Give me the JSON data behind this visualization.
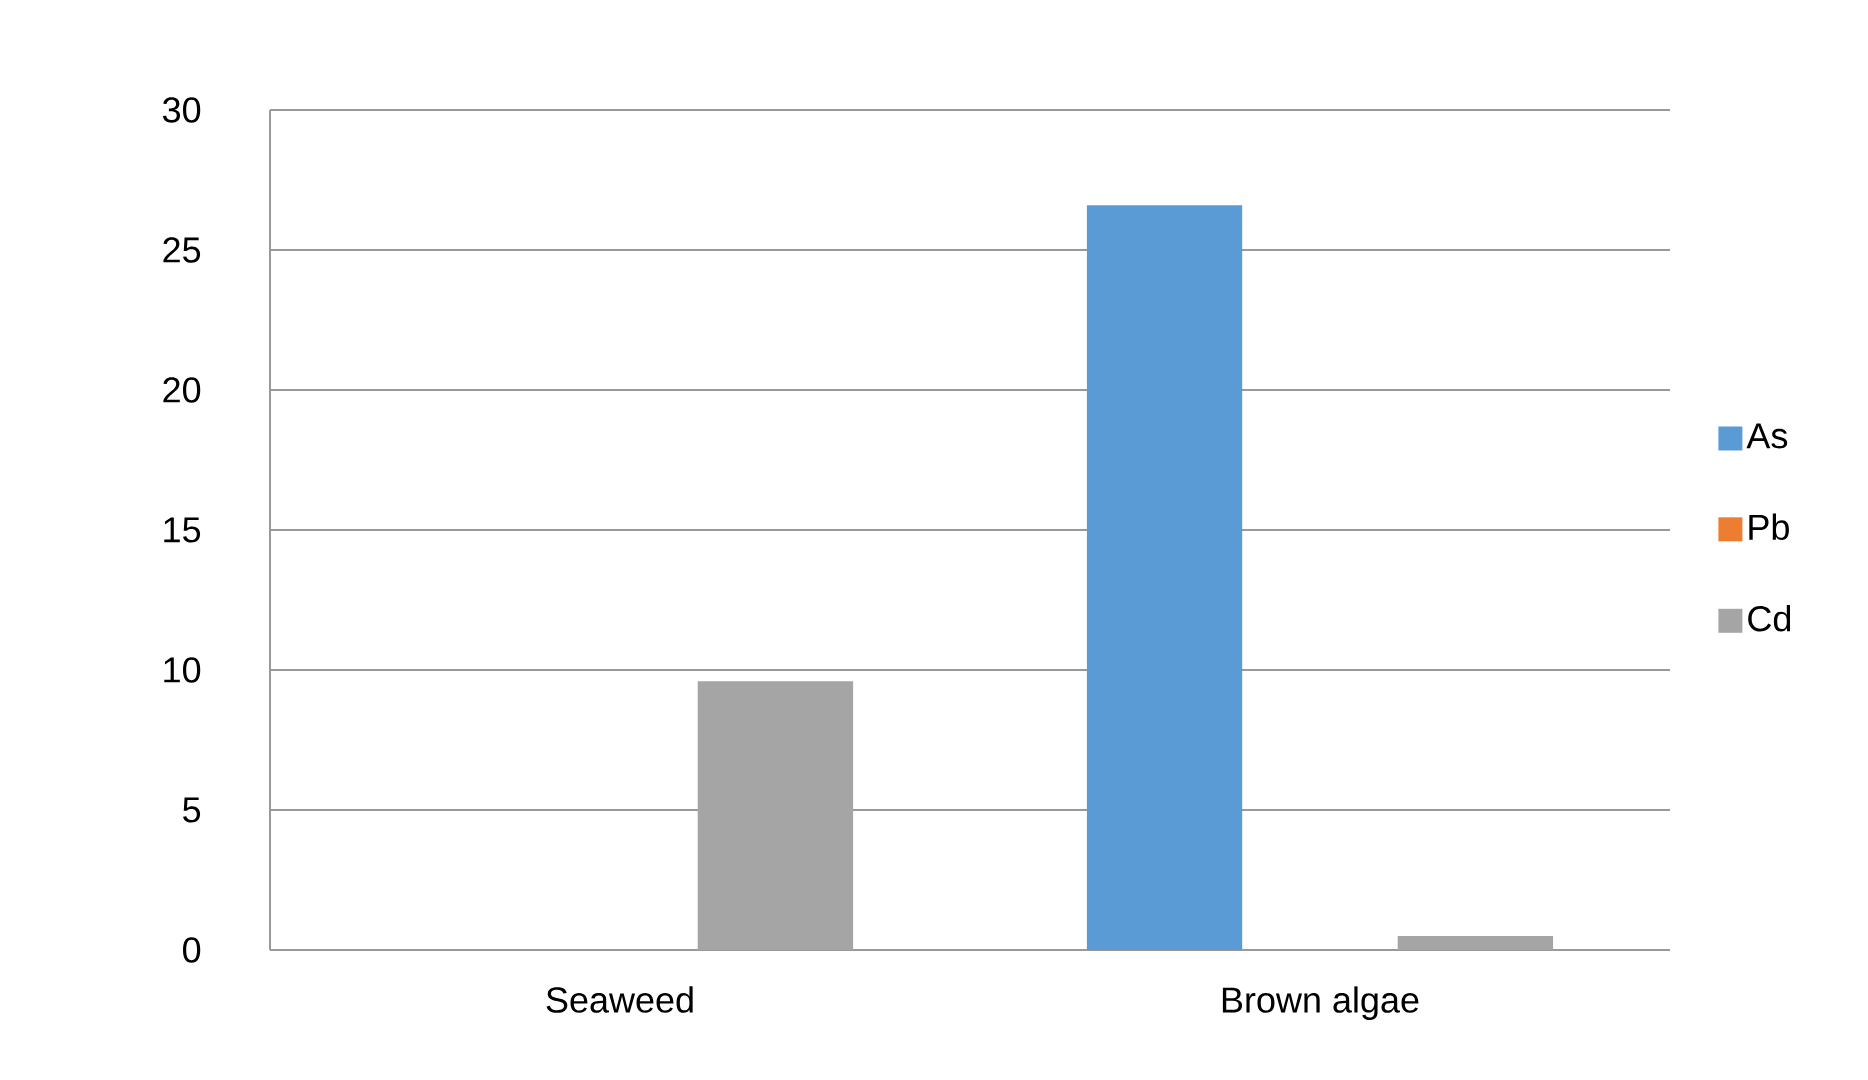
{
  "chart_data": {
    "type": "bar",
    "categories": [
      "Seaweed",
      "Brown algae"
    ],
    "series": [
      {
        "name": "As",
        "color": "#5b9bd5",
        "values": [
          0,
          26.6
        ]
      },
      {
        "name": "Pb",
        "color": "#ed7d31",
        "values": [
          0,
          0
        ]
      },
      {
        "name": "Cd",
        "color": "#a5a5a5",
        "values": [
          9.6,
          0.5
        ]
      }
    ],
    "ylim": [
      0,
      30
    ],
    "yticks": [
      0,
      5,
      10,
      15,
      20,
      25,
      30
    ],
    "grid": "y",
    "legend": "right"
  }
}
